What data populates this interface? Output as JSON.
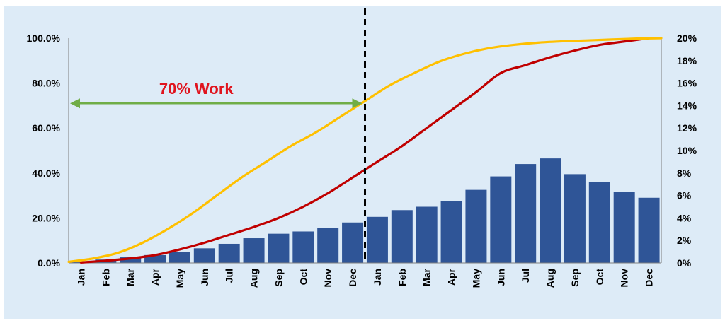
{
  "chart_data": {
    "type": "bar",
    "categories": [
      "Jan",
      "Feb",
      "Mar",
      "Apr",
      "May",
      "Jun",
      "Jul",
      "Aug",
      "Sep",
      "Oct",
      "Nov",
      "Dec",
      "Jan",
      "Feb",
      "Mar",
      "Apr",
      "May",
      "Jun",
      "Jul",
      "Aug",
      "Sep",
      "Oct",
      "Nov",
      "Dec"
    ],
    "title": "",
    "xlabel": "",
    "ylabel": "",
    "y_left": {
      "range": [
        0,
        100
      ],
      "ticks": [
        "0.0%",
        "20.0%",
        "40.0%",
        "60.0%",
        "80.0%",
        "100.0%"
      ]
    },
    "y_right": {
      "range": [
        0,
        20
      ],
      "ticks": [
        "0%",
        "2%",
        "4%",
        "6%",
        "8%",
        "10%",
        "12%",
        "14%",
        "16%",
        "18%",
        "20%"
      ]
    },
    "series": [
      {
        "type": "bar",
        "axis": "right",
        "values": [
          0.1,
          0.3,
          0.5,
          0.7,
          1.0,
          1.3,
          1.7,
          2.2,
          2.6,
          2.8,
          3.1,
          3.6,
          4.1,
          4.7,
          5.0,
          5.5,
          6.5,
          7.7,
          8.8,
          9.3,
          7.9,
          7.2,
          6.3,
          5.8
        ],
        "color": "#2f5597"
      },
      {
        "type": "line",
        "axis": "left",
        "values": [
          0.2,
          1.0,
          2.0,
          3.5,
          6.0,
          9.0,
          12.5,
          16.0,
          20.0,
          25.0,
          31.0,
          38.0,
          45.0,
          52.0,
          60.0,
          68.0,
          76.0,
          84.5,
          88.0,
          91.5,
          94.5,
          97.0,
          98.5,
          100.0
        ],
        "color": "#c00000",
        "smooth": true
      },
      {
        "type": "line",
        "axis": "left",
        "x": [
          -0.5,
          0.5,
          1.5,
          2.5,
          3.5,
          4.5,
          5.5,
          6.5,
          7.5,
          8.5,
          9.5,
          10.5,
          11.5,
          12.5,
          13.5,
          14.5,
          15.5,
          16.5,
          17.5,
          18.5,
          19.5,
          20.5,
          21.5,
          22.5,
          23.5
        ],
        "values": [
          0.5,
          2.0,
          4.5,
          9.0,
          15.0,
          22.0,
          30.0,
          38.0,
          45.0,
          52.0,
          58.0,
          65.0,
          72.0,
          79.0,
          84.5,
          89.5,
          93.0,
          95.5,
          97.0,
          98.0,
          98.6,
          99.0,
          99.4,
          99.8,
          100.0
        ],
        "color": "#ffc000",
        "smooth": true
      }
    ],
    "divider": {
      "after_category_index": 11,
      "style": "dashed",
      "color": "#000000"
    },
    "annotation": {
      "text": "70% Work",
      "color": "#e0141e",
      "arrow_color": "#70ad47",
      "arrow_level": 71,
      "arrow_from_category": 0,
      "arrow_to_category": 11
    },
    "grid": false,
    "legend": "none"
  }
}
